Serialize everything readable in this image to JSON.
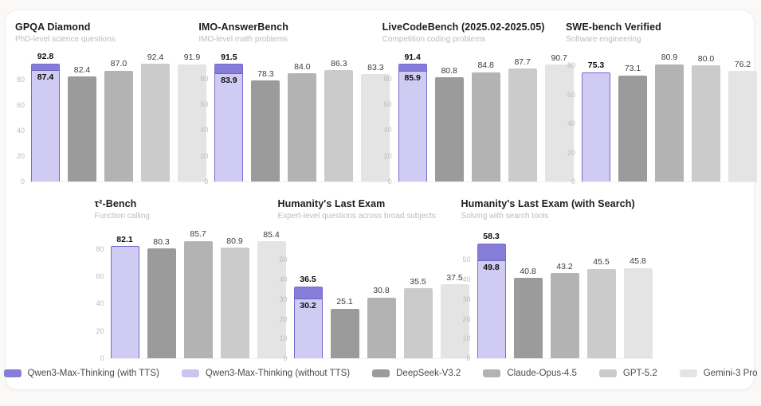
{
  "colors": {
    "qwen_with_tts": "#867dd8",
    "qwen_without_tts_fill": "#cfcbf2",
    "qwen_border": "#756bd0",
    "bar_grays": [
      "#9b9b9b",
      "#b3b3b3",
      "#cbcbcb",
      "#e4e4e4"
    ],
    "legend_without_tts_swatch": "#cac5ef"
  },
  "models": [
    "Qwen3-Max-Thinking (with TTS)",
    "Qwen3-Max-Thinking (without TTS)",
    "DeepSeek-V3.2",
    "Claude-Opus-4.5",
    "GPT-5.2",
    "Gemini-3 Pro"
  ],
  "legend": [
    {
      "label": "Qwen3-Max-Thinking (with TTS)",
      "color": "#867dd8"
    },
    {
      "label": "Qwen3-Max-Thinking (without TTS)",
      "color": "#cac5ef"
    },
    {
      "label": "DeepSeek-V3.2",
      "color": "#9b9b9b"
    },
    {
      "label": "Claude-Opus-4.5",
      "color": "#b3b3b3"
    },
    {
      "label": "GPT-5.2",
      "color": "#cbcbcb"
    },
    {
      "label": "Gemini-3 Pro",
      "color": "#e4e4e4"
    }
  ],
  "chart_data": [
    {
      "type": "bar",
      "row": 1,
      "title": "GPQA Diamond",
      "subtitle": "PhD-level science questions",
      "yticks": [
        0,
        20,
        40,
        60,
        80
      ],
      "ymax": 95,
      "with_tts": 92.8,
      "without_tts": 87.4,
      "others": [
        82.4,
        87.0,
        92.4,
        91.9
      ]
    },
    {
      "type": "bar",
      "row": 1,
      "title": "IMO-AnswerBench",
      "subtitle": "IMO-level math problems",
      "yticks": [
        0,
        20,
        40,
        60,
        80
      ],
      "ymax": 94,
      "with_tts": 91.5,
      "without_tts": 83.9,
      "others": [
        78.3,
        84.0,
        86.3,
        83.3
      ]
    },
    {
      "type": "bar",
      "row": 1,
      "title": "LiveCodeBench (2025.02-2025.05)",
      "subtitle": "Competition coding problems",
      "yticks": [
        0,
        20,
        40,
        60,
        80
      ],
      "ymax": 94,
      "with_tts": 91.4,
      "without_tts": 85.9,
      "others": [
        80.8,
        84.8,
        87.7,
        90.7
      ]
    },
    {
      "type": "bar",
      "row": 1,
      "title": "SWE-bench Verified",
      "subtitle": "Software engineering",
      "yticks": [
        0,
        20,
        40,
        60,
        80
      ],
      "ymax": 83.5,
      "with_tts": null,
      "without_tts": 75.3,
      "others": [
        73.1,
        80.9,
        80.0,
        76.2
      ]
    },
    {
      "type": "bar",
      "row": 2,
      "title": "τ²-Bench",
      "subtitle": "Function calling",
      "yticks": [
        0,
        20,
        40,
        60,
        80
      ],
      "ymax": 88.5,
      "with_tts": null,
      "without_tts": 82.1,
      "others": [
        80.3,
        85.7,
        80.9,
        85.4
      ]
    },
    {
      "type": "bar",
      "row": 2,
      "title": "Humanity's Last Exam",
      "subtitle": "Expert-level questions across broad subjects",
      "yticks": [
        0,
        10,
        20,
        30,
        40,
        50
      ],
      "ymax": 61.5,
      "with_tts": 36.5,
      "without_tts": 30.2,
      "others": [
        25.1,
        30.8,
        35.5,
        37.5
      ]
    },
    {
      "type": "bar",
      "row": 2,
      "title": "Humanity's Last Exam (with Search)",
      "subtitle": "Solving with search tools",
      "yticks": [
        0,
        10,
        20,
        30,
        40,
        50
      ],
      "ymax": 61.5,
      "with_tts": 58.3,
      "without_tts": 49.8,
      "others": [
        40.8,
        43.2,
        45.5,
        45.8
      ]
    }
  ]
}
